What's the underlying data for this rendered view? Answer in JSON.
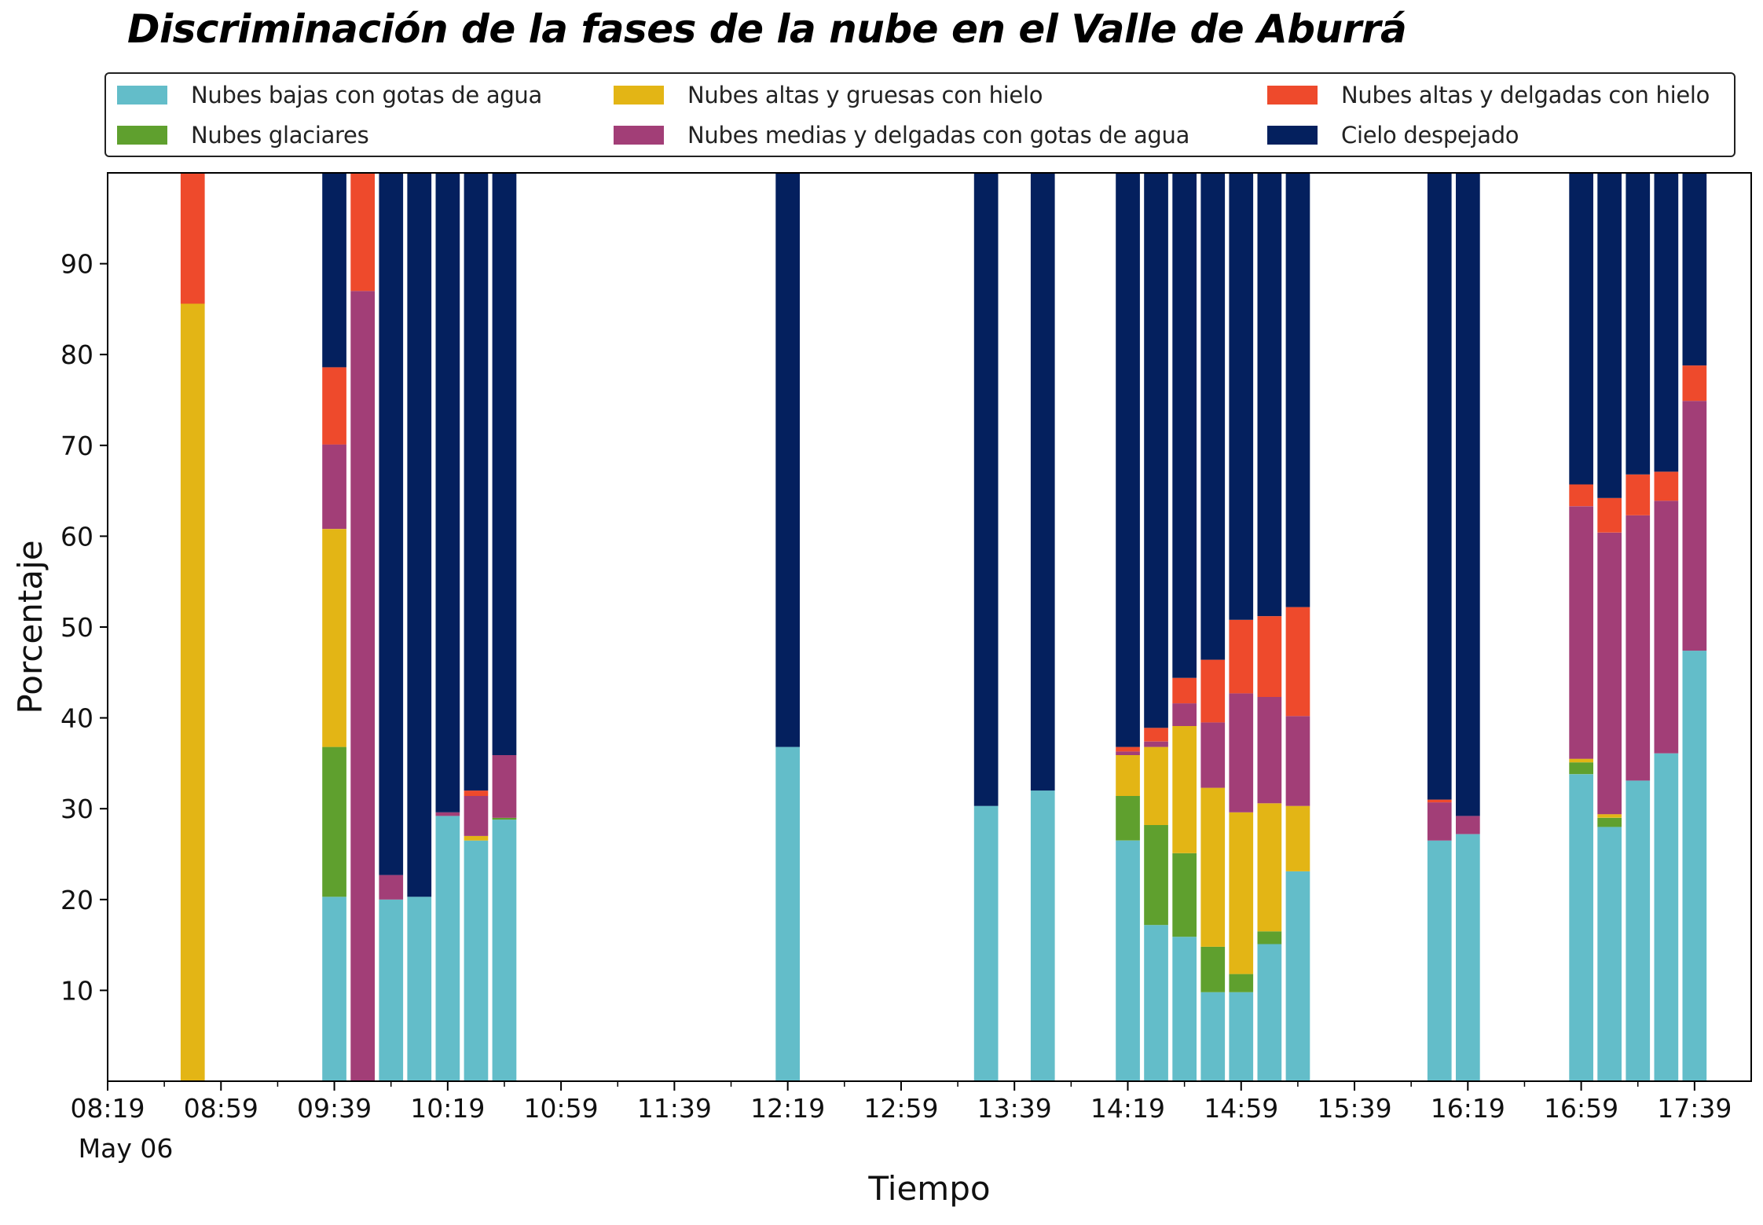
{
  "chart_data": {
    "type": "bar",
    "stacked": true,
    "title": "Discriminación de la fases de la nube en el Valle de Aburrá",
    "xlabel": "Tiempo",
    "ylabel": "Porcentaje",
    "ylim": [
      0,
      100
    ],
    "yticks": [
      10,
      20,
      30,
      40,
      50,
      60,
      70,
      80,
      90
    ],
    "xlim": [
      "08:19",
      "17:59"
    ],
    "xticks": [
      "08:19",
      "08:59",
      "09:39",
      "10:19",
      "10:59",
      "11:39",
      "12:19",
      "12:59",
      "13:39",
      "14:19",
      "14:59",
      "15:39",
      "16:19",
      "16:59",
      "17:39"
    ],
    "x_date_label": "May 06",
    "bar_width_minutes": 8.5,
    "grid": false,
    "legend_position": "top",
    "times": [
      "08:49",
      "09:39",
      "09:49",
      "09:59",
      "10:09",
      "10:19",
      "10:29",
      "10:39",
      "12:19",
      "13:29",
      "13:49",
      "14:19",
      "14:29",
      "14:39",
      "14:49",
      "14:59",
      "15:09",
      "15:19",
      "16:09",
      "16:19",
      "16:59",
      "17:09",
      "17:19",
      "17:29",
      "17:39"
    ],
    "series": [
      {
        "name": "Nubes bajas con gotas de agua",
        "color": "#63BDC9",
        "values": [
          0,
          20.3,
          0,
          20.0,
          20.3,
          29.2,
          26.5,
          28.8,
          36.8,
          30.3,
          32.0,
          26.5,
          17.2,
          15.9,
          9.8,
          9.8,
          15.1,
          23.1,
          26.5,
          27.2,
          33.8,
          28.0,
          33.1,
          36.1,
          47.4
        ]
      },
      {
        "name": "Nubes glaciares",
        "color": "#5FA02E",
        "values": [
          0,
          16.5,
          0,
          0,
          0,
          0,
          0,
          0.2,
          0,
          0,
          0,
          4.9,
          11.0,
          9.2,
          5.0,
          2.0,
          1.4,
          0,
          0,
          0,
          1.3,
          1.0,
          0,
          0,
          0
        ]
      },
      {
        "name": "Nubes altas y gruesas con hielo",
        "color": "#E3B515",
        "values": [
          85.6,
          24.0,
          0,
          0,
          0,
          0,
          0.5,
          0,
          0,
          0,
          0,
          4.5,
          8.6,
          14.0,
          17.5,
          17.8,
          14.1,
          7.2,
          0,
          0,
          0.4,
          0.4,
          0,
          0,
          0
        ]
      },
      {
        "name": "Nubes medias y delgadas con gotas de agua",
        "color": "#A23E77",
        "values": [
          0,
          9.3,
          87.0,
          2.7,
          0,
          0.4,
          4.4,
          6.9,
          0,
          0,
          0,
          0.4,
          0.6,
          2.5,
          7.2,
          13.1,
          11.7,
          9.9,
          4.2,
          2.0,
          27.8,
          31.0,
          29.2,
          27.8,
          27.5
        ]
      },
      {
        "name": "Nubes altas y delgadas con hielo",
        "color": "#EE4A2C",
        "values": [
          14.4,
          8.5,
          13.0,
          0,
          0,
          0,
          0.6,
          0,
          0,
          0,
          0,
          0.5,
          1.5,
          2.8,
          6.9,
          8.1,
          8.9,
          12.0,
          0.3,
          0,
          2.4,
          3.8,
          4.5,
          3.2,
          3.9
        ]
      },
      {
        "name": "Cielo despejado",
        "color": "#04205E",
        "values": [
          0,
          21.4,
          0,
          77.3,
          79.7,
          70.4,
          68.0,
          64.1,
          63.2,
          69.7,
          68.0,
          63.6,
          61.1,
          55.6,
          53.6,
          49.2,
          48.8,
          47.8,
          69.0,
          70.8,
          34.3,
          35.8,
          33.2,
          32.9,
          21.2
        ]
      }
    ]
  }
}
